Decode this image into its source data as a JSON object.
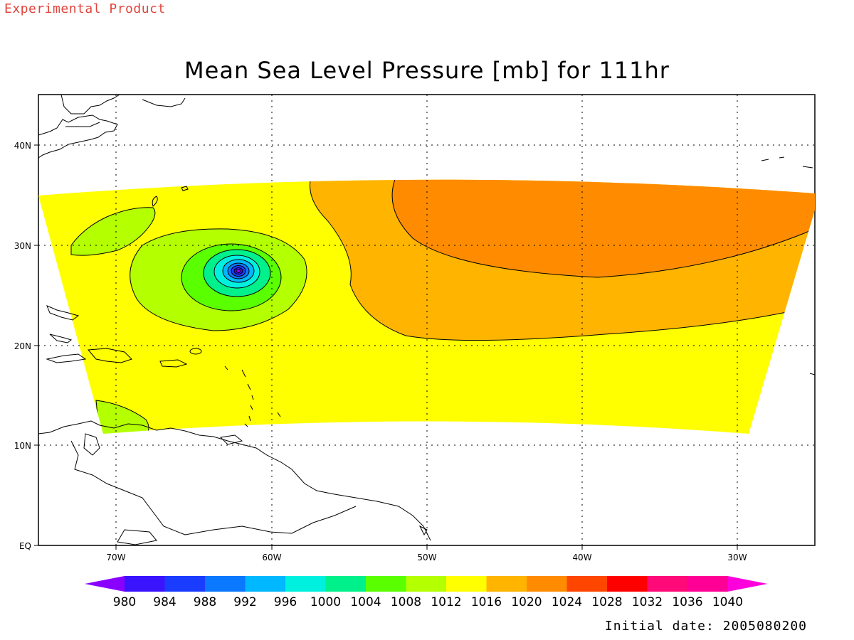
{
  "header": {
    "product_tag": "Experimental Product",
    "title": "Mean Sea Level Pressure [mb] for 111hr"
  },
  "footer": {
    "initial_date": "Initial date: 2005080200"
  },
  "map": {
    "lon_range": [
      -75,
      -25
    ],
    "lat_range": [
      0,
      45
    ],
    "x_ticks": [
      "70W",
      "60W",
      "50W",
      "40W",
      "30W"
    ],
    "y_ticks": [
      "EQ",
      "10N",
      "20N",
      "30N",
      "40N"
    ],
    "low_center": {
      "lon": -62.3,
      "lat": 27.2
    }
  },
  "colorbar": {
    "labels": [
      "980",
      "984",
      "988",
      "992",
      "996",
      "1000",
      "1004",
      "1008",
      "1012",
      "1016",
      "1020",
      "1024",
      "1028",
      "1032",
      "1036",
      "1040"
    ],
    "colors": [
      "#8a00ff",
      "#3a14ff",
      "#1a3cff",
      "#0a78ff",
      "#00b8ff",
      "#00f0e0",
      "#00f08c",
      "#5aff00",
      "#b4ff00",
      "#ffff00",
      "#ffb400",
      "#ff8c00",
      "#ff4600",
      "#ff0000",
      "#ff0a78",
      "#ff0096",
      "#ff00dc"
    ]
  },
  "colors": {
    "level_1008": "#5aff00",
    "level_1012": "#b4ff00",
    "level_1016": "#ffff00",
    "level_1020": "#ffb400",
    "level_1024": "#ff8c00"
  }
}
